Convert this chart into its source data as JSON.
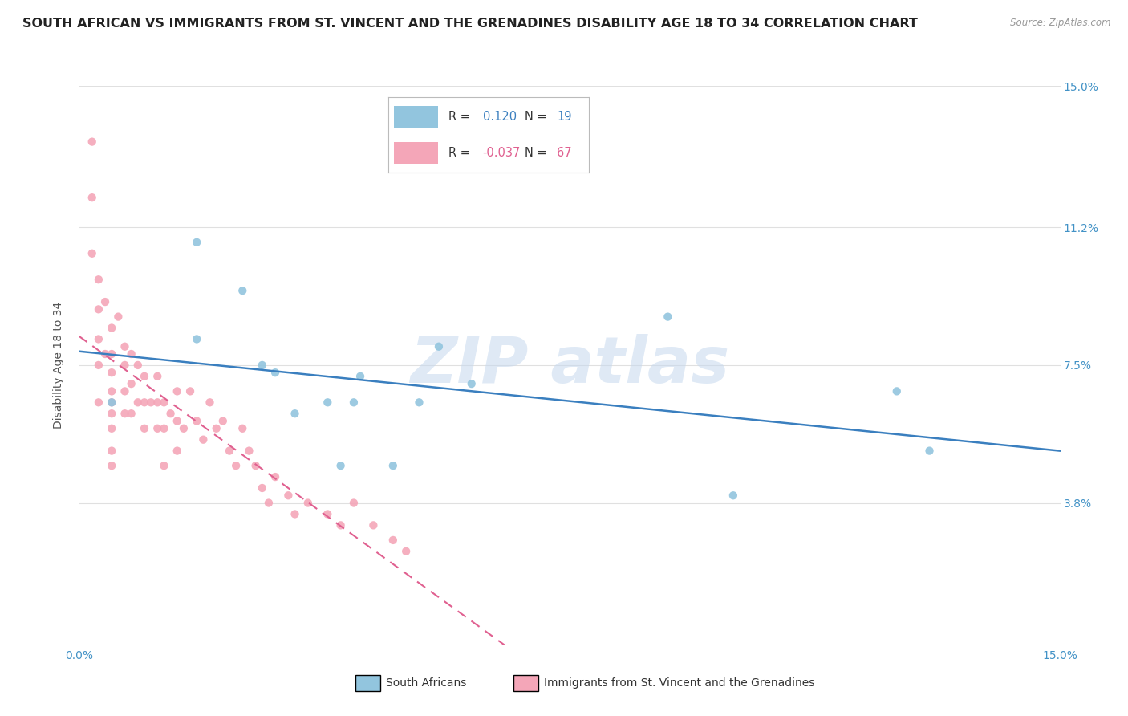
{
  "title": "SOUTH AFRICAN VS IMMIGRANTS FROM ST. VINCENT AND THE GRENADINES DISABILITY AGE 18 TO 34 CORRELATION CHART",
  "source": "Source: ZipAtlas.com",
  "ylabel": "Disability Age 18 to 34",
  "xmin": 0.0,
  "xmax": 0.15,
  "ymin": 0.0,
  "ymax": 0.15,
  "right_ytick_values": [
    0.038,
    0.075,
    0.112,
    0.15
  ],
  "right_ytick_labels": [
    "3.8%",
    "7.5%",
    "11.2%",
    "15.0%"
  ],
  "color_blue": "#92c5de",
  "color_pink": "#f4a6b8",
  "line_color_blue": "#3a7fbf",
  "line_color_pink": "#e06090",
  "watermark_text": "ZIP atlas",
  "blue_scatter_x": [
    0.005,
    0.018,
    0.018,
    0.025,
    0.028,
    0.03,
    0.033,
    0.038,
    0.04,
    0.042,
    0.043,
    0.048,
    0.052,
    0.055,
    0.06,
    0.09,
    0.1,
    0.125,
    0.13
  ],
  "blue_scatter_y": [
    0.065,
    0.108,
    0.082,
    0.095,
    0.075,
    0.073,
    0.062,
    0.065,
    0.048,
    0.065,
    0.072,
    0.048,
    0.065,
    0.08,
    0.07,
    0.088,
    0.04,
    0.068,
    0.052
  ],
  "pink_scatter_x": [
    0.002,
    0.002,
    0.002,
    0.003,
    0.003,
    0.003,
    0.003,
    0.003,
    0.004,
    0.004,
    0.005,
    0.005,
    0.005,
    0.005,
    0.005,
    0.005,
    0.005,
    0.005,
    0.005,
    0.006,
    0.007,
    0.007,
    0.007,
    0.007,
    0.008,
    0.008,
    0.008,
    0.009,
    0.009,
    0.01,
    0.01,
    0.01,
    0.011,
    0.012,
    0.012,
    0.012,
    0.013,
    0.013,
    0.013,
    0.014,
    0.015,
    0.015,
    0.015,
    0.016,
    0.017,
    0.018,
    0.019,
    0.02,
    0.021,
    0.022,
    0.023,
    0.024,
    0.025,
    0.026,
    0.027,
    0.028,
    0.029,
    0.03,
    0.032,
    0.033,
    0.035,
    0.038,
    0.04,
    0.042,
    0.045,
    0.048,
    0.05
  ],
  "pink_scatter_y": [
    0.135,
    0.12,
    0.105,
    0.098,
    0.09,
    0.082,
    0.075,
    0.065,
    0.092,
    0.078,
    0.085,
    0.078,
    0.073,
    0.068,
    0.065,
    0.062,
    0.058,
    0.052,
    0.048,
    0.088,
    0.08,
    0.075,
    0.068,
    0.062,
    0.078,
    0.07,
    0.062,
    0.075,
    0.065,
    0.072,
    0.065,
    0.058,
    0.065,
    0.072,
    0.065,
    0.058,
    0.065,
    0.058,
    0.048,
    0.062,
    0.068,
    0.06,
    0.052,
    0.058,
    0.068,
    0.06,
    0.055,
    0.065,
    0.058,
    0.06,
    0.052,
    0.048,
    0.058,
    0.052,
    0.048,
    0.042,
    0.038,
    0.045,
    0.04,
    0.035,
    0.038,
    0.035,
    0.032,
    0.038,
    0.032,
    0.028,
    0.025
  ],
  "bg_color": "#ffffff",
  "grid_color": "#e0e0e0",
  "title_fontsize": 11.5,
  "axis_fontsize": 10,
  "tick_color": "#4292c6",
  "bottom_legend_label1": "South Africans",
  "bottom_legend_label2": "Immigrants from St. Vincent and the Grenadines"
}
